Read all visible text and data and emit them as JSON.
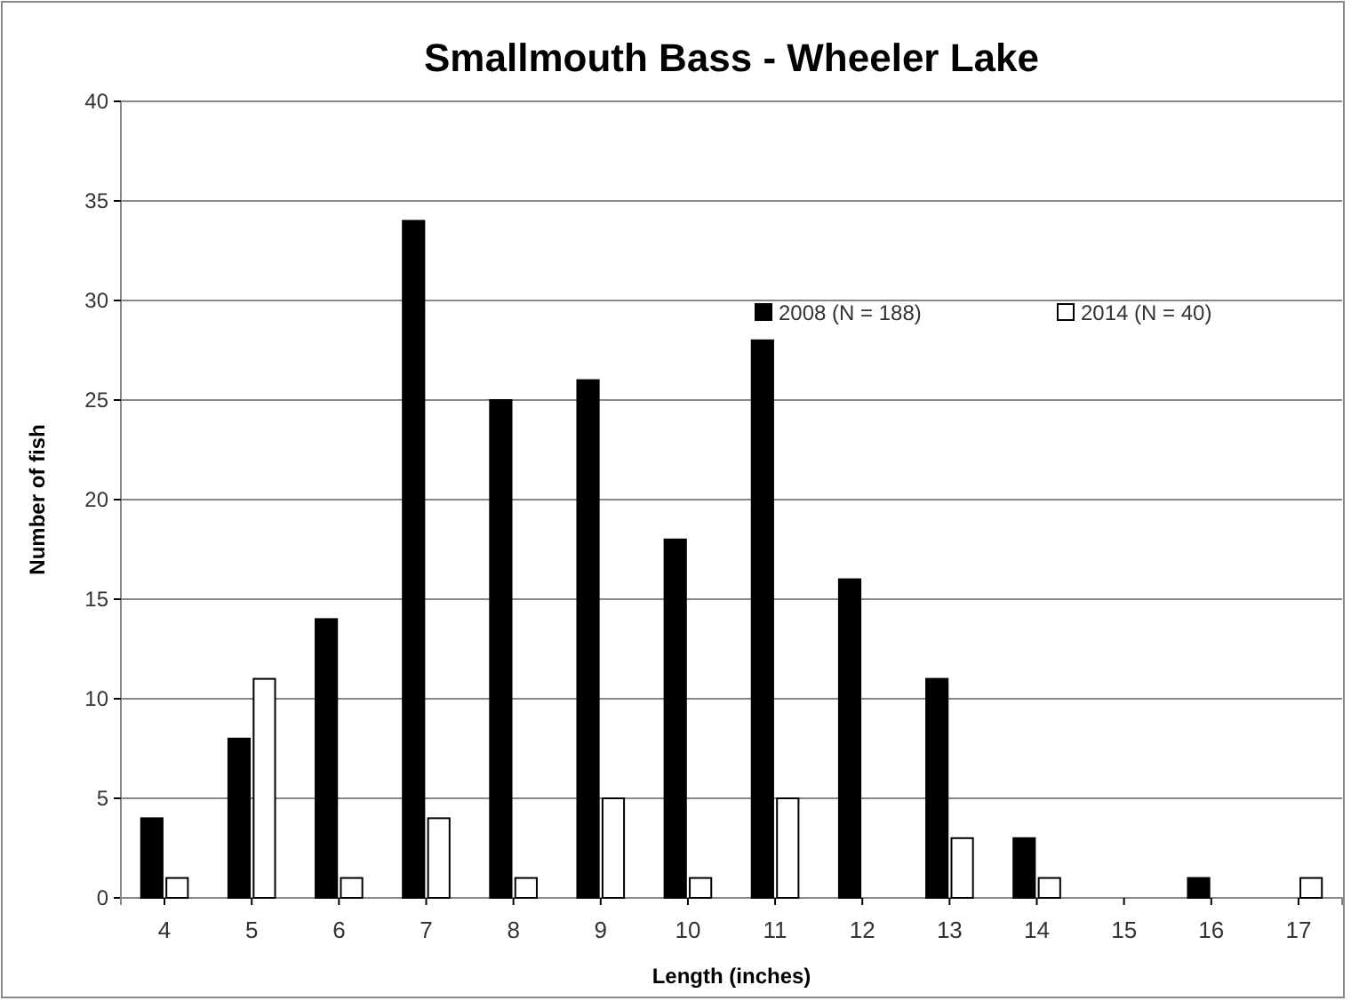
{
  "chart_data": {
    "type": "bar",
    "title": "Smallmouth Bass - Wheeler Lake",
    "xlabel": "Length (inches)",
    "ylabel": "Number of fish",
    "categories": [
      "4",
      "5",
      "6",
      "7",
      "8",
      "9",
      "10",
      "11",
      "12",
      "13",
      "14",
      "15",
      "16",
      "17"
    ],
    "series": [
      {
        "name": "2008 (N = 188)",
        "color": "#000000",
        "values": [
          4,
          8,
          14,
          34,
          25,
          26,
          18,
          28,
          16,
          11,
          3,
          0,
          1,
          0
        ]
      },
      {
        "name": "2014 (N = 40)",
        "color": "#ffffff",
        "values": [
          1,
          11,
          1,
          4,
          1,
          5,
          1,
          5,
          0,
          3,
          1,
          0,
          0,
          1
        ]
      }
    ],
    "ylim": [
      0,
      40
    ],
    "yticks": [
      0,
      5,
      10,
      15,
      20,
      25,
      30,
      35,
      40
    ],
    "grid": "y",
    "legend": "top right"
  }
}
